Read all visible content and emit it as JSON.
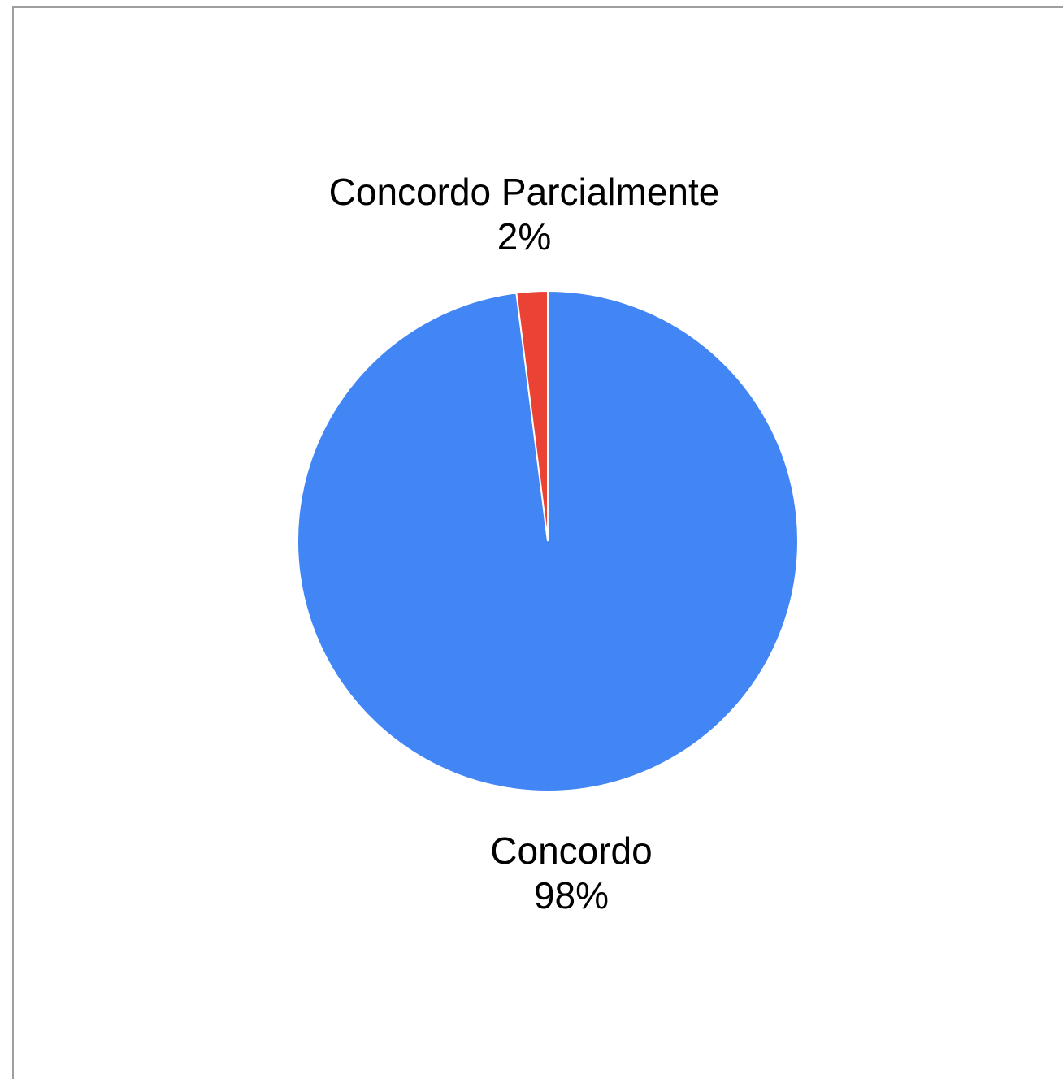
{
  "chart_data": {
    "type": "pie",
    "slices": [
      {
        "label": "Concordo",
        "value": 98,
        "value_label": "98%",
        "color": "#4285F4"
      },
      {
        "label": "Concordo Parcialmente",
        "value": 2,
        "value_label": "2%",
        "color": "#EA4335"
      }
    ],
    "start_angle": "top",
    "direction": "clockwise"
  }
}
